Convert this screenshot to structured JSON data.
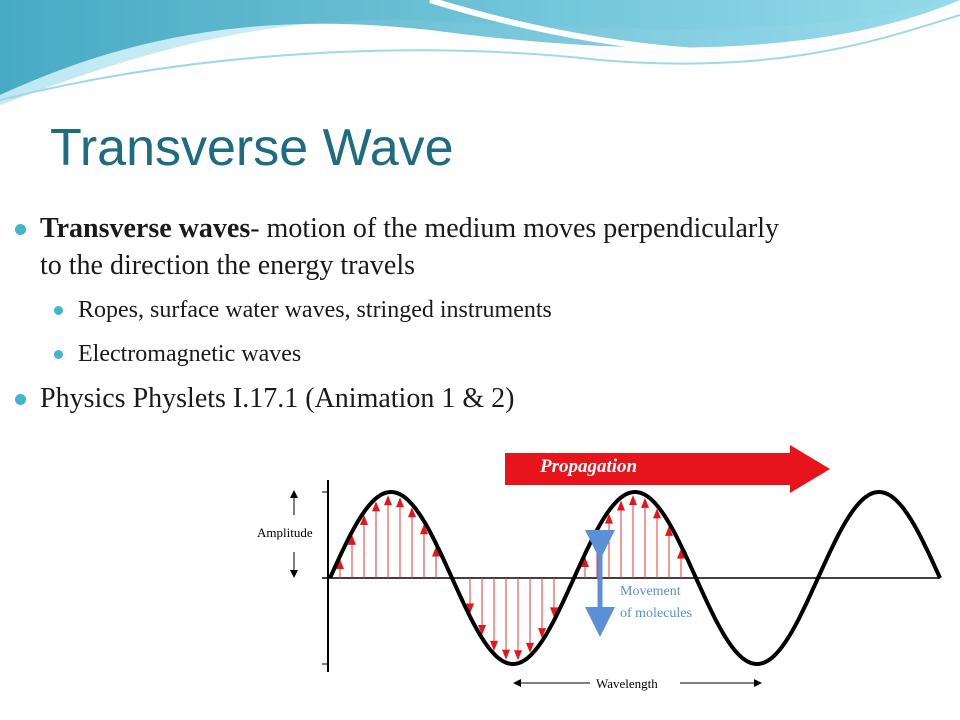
{
  "title": "Transverse Wave",
  "bullets": [
    {
      "bold": "Transverse waves",
      "text": "- motion of the medium moves perpendicularly to the direction the energy travels",
      "sub": [
        "Ropes, surface water waves, stringed instruments",
        "Electromagnetic waves"
      ]
    },
    {
      "text": "Physics Physlets I.17.1 (Animation 1 & 2)"
    }
  ],
  "diagram": {
    "propagation": "Propagation",
    "amplitude": "Amplitude",
    "movement": [
      "Movement",
      "of molecules"
    ],
    "wavelength": "Wavelength"
  }
}
